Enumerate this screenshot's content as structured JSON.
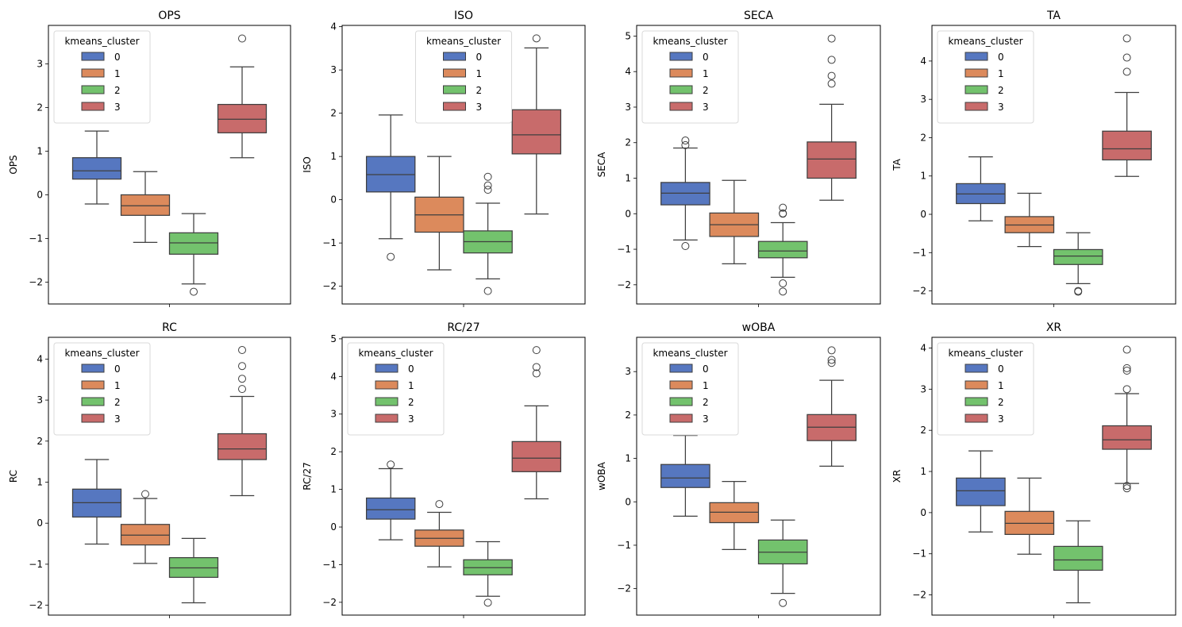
{
  "chart_data": [
    {
      "type": "box",
      "title": "OPS",
      "ylabel": "OPS",
      "xlabel": "",
      "ylim": [
        -2.5,
        3.88
      ],
      "yticks": [
        -2,
        -1,
        0,
        1,
        2,
        3
      ],
      "legend": {
        "title": "kmeans_cluster",
        "position": "upper-left"
      },
      "groups": [
        {
          "cluster": "0",
          "whislo": -0.21,
          "q1": 0.36,
          "med": 0.55,
          "q3": 0.85,
          "whishi": 1.46,
          "fliers": []
        },
        {
          "cluster": "1",
          "whislo": -1.09,
          "q1": -0.47,
          "med": -0.25,
          "q3": 0.0,
          "whishi": 0.53,
          "fliers": []
        },
        {
          "cluster": "2",
          "whislo": -2.04,
          "q1": -1.36,
          "med": -1.1,
          "q3": -0.87,
          "whishi": -0.43,
          "fliers": [
            -2.22
          ]
        },
        {
          "cluster": "3",
          "whislo": 0.85,
          "q1": 1.42,
          "med": 1.73,
          "q3": 2.07,
          "whishi": 2.93,
          "fliers": [
            3.58
          ]
        }
      ]
    },
    {
      "type": "box",
      "title": "ISO",
      "ylabel": "ISO",
      "xlabel": "",
      "ylim": [
        -2.41,
        4.03
      ],
      "yticks": [
        -2,
        -1,
        0,
        1,
        2,
        3,
        4
      ],
      "legend": {
        "title": "kmeans_cluster",
        "position": "upper-center"
      },
      "groups": [
        {
          "cluster": "0",
          "whislo": -0.9,
          "q1": 0.18,
          "med": 0.58,
          "q3": 1.0,
          "whishi": 1.96,
          "fliers": [
            -1.32
          ]
        },
        {
          "cluster": "1",
          "whislo": -1.62,
          "q1": -0.75,
          "med": -0.35,
          "q3": 0.06,
          "whishi": 1.0,
          "fliers": []
        },
        {
          "cluster": "2",
          "whislo": -1.83,
          "q1": -1.23,
          "med": -0.97,
          "q3": -0.72,
          "whishi": -0.08,
          "fliers": [
            0.53,
            0.33,
            0.23,
            -2.11
          ]
        },
        {
          "cluster": "3",
          "whislo": -0.33,
          "q1": 1.06,
          "med": 1.5,
          "q3": 2.08,
          "whishi": 3.51,
          "fliers": [
            3.73
          ]
        }
      ]
    },
    {
      "type": "box",
      "title": "SECA",
      "ylabel": "SECA",
      "xlabel": "",
      "ylim": [
        -2.54,
        5.3
      ],
      "yticks": [
        -2,
        -1,
        0,
        1,
        2,
        3,
        4,
        5
      ],
      "legend": {
        "title": "kmeans_cluster",
        "position": "upper-left"
      },
      "groups": [
        {
          "cluster": "0",
          "whislo": -0.74,
          "q1": 0.25,
          "med": 0.58,
          "q3": 0.88,
          "whishi": 1.85,
          "fliers": [
            2.06,
            1.93,
            -0.91
          ]
        },
        {
          "cluster": "1",
          "whislo": -1.41,
          "q1": -0.64,
          "med": -0.31,
          "q3": 0.02,
          "whishi": 0.94,
          "fliers": []
        },
        {
          "cluster": "2",
          "whislo": -1.79,
          "q1": -1.24,
          "med": -1.05,
          "q3": -0.78,
          "whishi": -0.25,
          "fliers": [
            0.17,
            0.01,
            0.0,
            -1.96,
            -2.19
          ]
        },
        {
          "cluster": "3",
          "whislo": 0.38,
          "q1": 1.0,
          "med": 1.54,
          "q3": 2.02,
          "whishi": 3.08,
          "fliers": [
            4.93,
            4.33,
            3.88,
            3.66
          ]
        }
      ]
    },
    {
      "type": "box",
      "title": "TA",
      "ylabel": "TA",
      "xlabel": "",
      "ylim": [
        -2.34,
        4.93
      ],
      "yticks": [
        -2,
        -1,
        0,
        1,
        2,
        3,
        4
      ],
      "legend": {
        "title": "kmeans_cluster",
        "position": "upper-left"
      },
      "groups": [
        {
          "cluster": "0",
          "whislo": -0.17,
          "q1": 0.28,
          "med": 0.53,
          "q3": 0.8,
          "whishi": 1.5,
          "fliers": []
        },
        {
          "cluster": "1",
          "whislo": -0.84,
          "q1": -0.48,
          "med": -0.28,
          "q3": -0.06,
          "whishi": 0.55,
          "fliers": []
        },
        {
          "cluster": "2",
          "whislo": -1.81,
          "q1": -1.31,
          "med": -1.09,
          "q3": -0.92,
          "whishi": -0.48,
          "fliers": [
            -2.0,
            -2.02
          ]
        },
        {
          "cluster": "3",
          "whislo": 0.99,
          "q1": 1.42,
          "med": 1.71,
          "q3": 2.17,
          "whishi": 3.18,
          "fliers": [
            4.59,
            4.09,
            3.72
          ]
        }
      ]
    },
    {
      "type": "box",
      "title": "RC",
      "ylabel": "RC",
      "xlabel": "",
      "ylim": [
        -2.24,
        4.53
      ],
      "yticks": [
        -2,
        -1,
        0,
        1,
        2,
        3,
        4
      ],
      "legend": {
        "title": "kmeans_cluster",
        "position": "upper-left"
      },
      "groups": [
        {
          "cluster": "0",
          "whislo": -0.51,
          "q1": 0.15,
          "med": 0.5,
          "q3": 0.83,
          "whishi": 1.55,
          "fliers": []
        },
        {
          "cluster": "1",
          "whislo": -0.98,
          "q1": -0.53,
          "med": -0.29,
          "q3": -0.03,
          "whishi": 0.6,
          "fliers": [
            0.71
          ]
        },
        {
          "cluster": "2",
          "whislo": -1.94,
          "q1": -1.32,
          "med": -1.09,
          "q3": -0.84,
          "whishi": -0.37,
          "fliers": []
        },
        {
          "cluster": "3",
          "whislo": 0.67,
          "q1": 1.55,
          "med": 1.81,
          "q3": 2.18,
          "whishi": 3.09,
          "fliers": [
            4.22,
            3.83,
            3.52,
            3.27
          ]
        }
      ]
    },
    {
      "type": "box",
      "title": "RC/27",
      "ylabel": "RC/27",
      "xlabel": "",
      "ylim": [
        -2.34,
        5.04
      ],
      "yticks": [
        -2,
        -1,
        0,
        1,
        2,
        3,
        4,
        5
      ],
      "legend": {
        "title": "kmeans_cluster",
        "position": "upper-left"
      },
      "groups": [
        {
          "cluster": "0",
          "whislo": -0.34,
          "q1": 0.21,
          "med": 0.46,
          "q3": 0.77,
          "whishi": 1.55,
          "fliers": [
            1.66
          ]
        },
        {
          "cluster": "1",
          "whislo": -1.06,
          "q1": -0.51,
          "med": -0.3,
          "q3": -0.08,
          "whishi": 0.39,
          "fliers": [
            0.61
          ]
        },
        {
          "cluster": "2",
          "whislo": -1.84,
          "q1": -1.27,
          "med": -1.08,
          "q3": -0.87,
          "whishi": -0.39,
          "fliers": [
            -2.01
          ]
        },
        {
          "cluster": "3",
          "whislo": 0.75,
          "q1": 1.47,
          "med": 1.83,
          "q3": 2.27,
          "whishi": 3.22,
          "fliers": [
            4.7,
            4.25,
            4.08
          ]
        }
      ]
    },
    {
      "type": "box",
      "title": "wOBA",
      "ylabel": "wOBA",
      "xlabel": "",
      "ylim": [
        -2.61,
        3.79
      ],
      "yticks": [
        -2,
        -1,
        0,
        1,
        2,
        3
      ],
      "legend": {
        "title": "kmeans_cluster",
        "position": "upper-left"
      },
      "groups": [
        {
          "cluster": "0",
          "whislo": -0.33,
          "q1": 0.33,
          "med": 0.55,
          "q3": 0.86,
          "whishi": 1.53,
          "fliers": []
        },
        {
          "cluster": "1",
          "whislo": -1.1,
          "q1": -0.48,
          "med": -0.24,
          "q3": -0.02,
          "whishi": 0.47,
          "fliers": []
        },
        {
          "cluster": "2",
          "whislo": -2.11,
          "q1": -1.43,
          "med": -1.16,
          "q3": -0.88,
          "whishi": -0.42,
          "fliers": [
            -2.33
          ]
        },
        {
          "cluster": "3",
          "whislo": 0.82,
          "q1": 1.41,
          "med": 1.72,
          "q3": 2.01,
          "whishi": 2.8,
          "fliers": [
            3.49,
            3.27,
            3.2
          ]
        }
      ]
    },
    {
      "type": "box",
      "title": "XR",
      "ylabel": "XR",
      "xlabel": "",
      "ylim": [
        -2.49,
        4.26
      ],
      "yticks": [
        -2,
        -1,
        0,
        1,
        2,
        3,
        4
      ],
      "legend": {
        "title": "kmeans_cluster",
        "position": "upper-left"
      },
      "groups": [
        {
          "cluster": "0",
          "whislo": -0.47,
          "q1": 0.17,
          "med": 0.53,
          "q3": 0.84,
          "whishi": 1.5,
          "fliers": []
        },
        {
          "cluster": "1",
          "whislo": -1.01,
          "q1": -0.53,
          "med": -0.26,
          "q3": 0.03,
          "whishi": 0.84,
          "fliers": []
        },
        {
          "cluster": "2",
          "whislo": -2.19,
          "q1": -1.4,
          "med": -1.15,
          "q3": -0.82,
          "whishi": -0.2,
          "fliers": []
        },
        {
          "cluster": "3",
          "whislo": 0.71,
          "q1": 1.54,
          "med": 1.77,
          "q3": 2.11,
          "whishi": 2.89,
          "fliers": [
            3.96,
            3.51,
            3.45,
            3.0,
            0.65,
            0.59
          ]
        }
      ]
    }
  ],
  "legend_entries": [
    "0",
    "1",
    "2",
    "3"
  ],
  "colors": {
    "cluster_0": "#5677c0",
    "cluster_1": "#dc8a5c",
    "cluster_2": "#73c26d",
    "cluster_3": "#c86b6b",
    "line": "#3f3f3f",
    "frame": "#000000"
  }
}
